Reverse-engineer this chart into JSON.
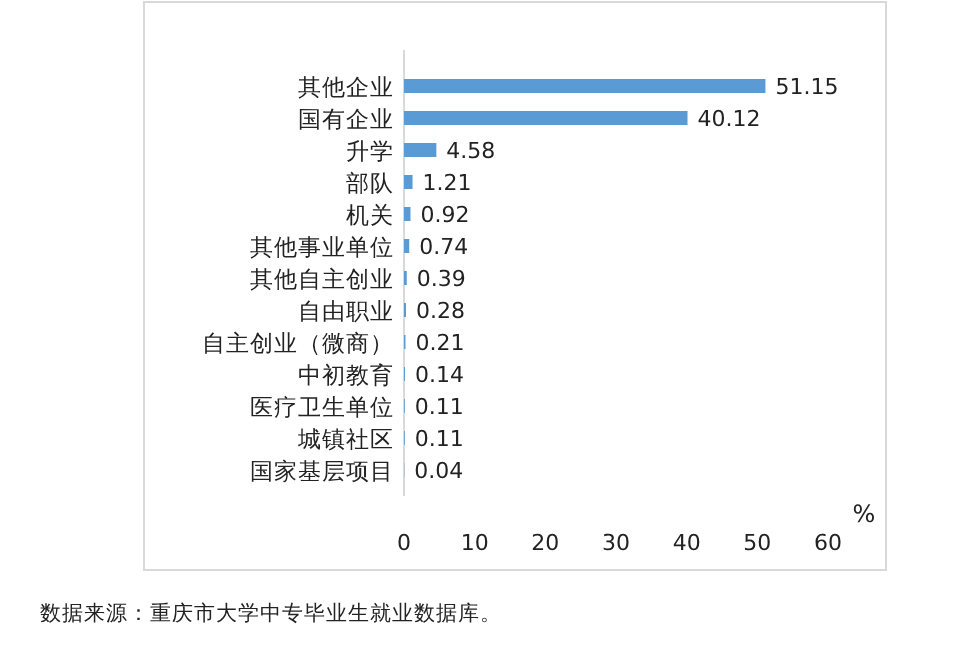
{
  "chart_data": {
    "type": "bar",
    "orientation": "horizontal",
    "categories": [
      "其他企业",
      "国有企业",
      "升学",
      "部队",
      "机关",
      "其他事业单位",
      "其他自主创业",
      "自由职业",
      "自主创业（微商）",
      "中初教育",
      "医疗卫生单位",
      "城镇社区",
      "国家基层项目"
    ],
    "values": [
      51.15,
      40.12,
      4.58,
      1.21,
      0.92,
      0.74,
      0.39,
      0.28,
      0.21,
      0.14,
      0.11,
      0.11,
      0.04
    ],
    "color": "#5b9bd5",
    "xlim": [
      0,
      60
    ],
    "xticks": [
      0,
      10,
      20,
      30,
      40,
      50,
      60
    ],
    "xlabel": "%",
    "data_labels": true,
    "grid": false,
    "annotations": [
      "数据来源：重庆市大学中专毕业生就业数据库。"
    ]
  }
}
